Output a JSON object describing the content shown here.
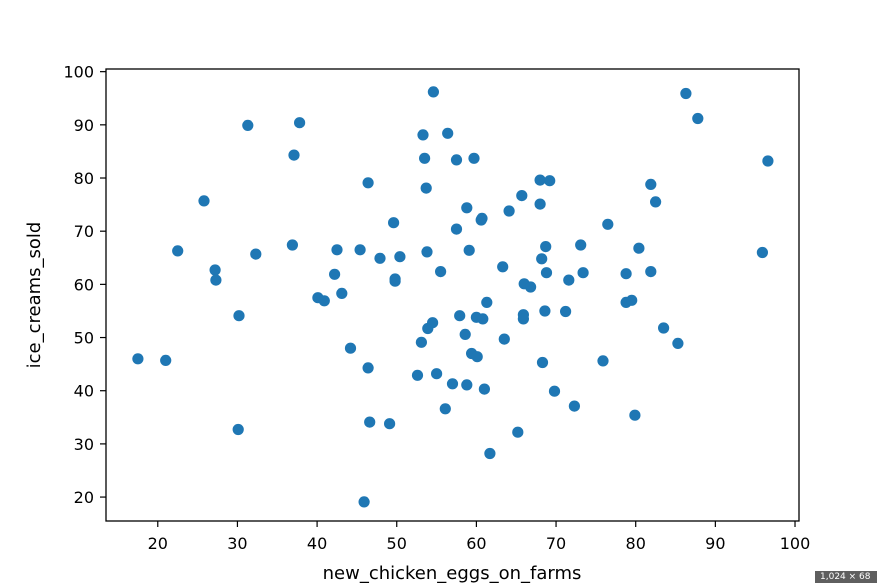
{
  "chart_data": {
    "type": "scatter",
    "title": "",
    "xlabel": "new_chicken_eggs_on_farms",
    "ylabel": "ice_creams_sold",
    "xlim": [
      13.5,
      100.5
    ],
    "ylim": [
      15.5,
      100.5
    ],
    "x_ticks": [
      20,
      30,
      40,
      50,
      60,
      70,
      80,
      90,
      100
    ],
    "y_ticks": [
      20,
      30,
      40,
      50,
      60,
      70,
      80,
      90,
      100
    ],
    "grid": false,
    "marker_color": "#1f77b4",
    "points": [
      [
        17.5,
        46
      ],
      [
        21,
        45.7
      ],
      [
        22.5,
        66.3
      ],
      [
        25.8,
        75.7
      ],
      [
        27.2,
        62.7
      ],
      [
        27.3,
        60.8
      ],
      [
        30.2,
        54.1
      ],
      [
        30.1,
        32.7
      ],
      [
        31.3,
        89.9
      ],
      [
        32.3,
        65.7
      ],
      [
        37.1,
        84.3
      ],
      [
        36.9,
        67.4
      ],
      [
        37.8,
        90.4
      ],
      [
        40.1,
        57.5
      ],
      [
        40.9,
        56.9
      ],
      [
        42.2,
        61.9
      ],
      [
        42.5,
        66.5
      ],
      [
        43.1,
        58.3
      ],
      [
        44.2,
        48
      ],
      [
        45.4,
        66.5
      ],
      [
        45.9,
        19.1
      ],
      [
        46.4,
        79.1
      ],
      [
        46.4,
        44.3
      ],
      [
        46.6,
        34.1
      ],
      [
        47.9,
        64.9
      ],
      [
        49.1,
        33.8
      ],
      [
        49.6,
        71.6
      ],
      [
        49.8,
        61
      ],
      [
        49.8,
        60.6
      ],
      [
        50.4,
        65.2
      ],
      [
        52.6,
        42.9
      ],
      [
        53.1,
        49.1
      ],
      [
        53.3,
        88.1
      ],
      [
        53.5,
        83.7
      ],
      [
        53.7,
        78.1
      ],
      [
        53.8,
        66.1
      ],
      [
        53.9,
        51.7
      ],
      [
        54.5,
        52.8
      ],
      [
        54.6,
        96.2
      ],
      [
        55.0,
        43.2
      ],
      [
        55.5,
        62.4
      ],
      [
        56.1,
        36.6
      ],
      [
        56.4,
        88.4
      ],
      [
        57.0,
        41.3
      ],
      [
        57.5,
        83.4
      ],
      [
        57.5,
        70.4
      ],
      [
        57.9,
        54.1
      ],
      [
        58.6,
        50.6
      ],
      [
        58.8,
        74.4
      ],
      [
        58.8,
        41.1
      ],
      [
        59.1,
        66.4
      ],
      [
        59.4,
        47
      ],
      [
        59.7,
        83.7
      ],
      [
        60.0,
        53.8
      ],
      [
        60.1,
        46.4
      ],
      [
        60.6,
        72.1
      ],
      [
        60.7,
        72.4
      ],
      [
        60.8,
        53.5
      ],
      [
        61.0,
        40.3
      ],
      [
        61.3,
        56.6
      ],
      [
        61.7,
        28.2
      ],
      [
        63.3,
        63.3
      ],
      [
        63.5,
        49.7
      ],
      [
        64.1,
        73.8
      ],
      [
        65.2,
        32.2
      ],
      [
        65.7,
        76.7
      ],
      [
        65.9,
        54.3
      ],
      [
        65.9,
        53.5
      ],
      [
        66.0,
        60.1
      ],
      [
        66.8,
        59.5
      ],
      [
        68.0,
        79.6
      ],
      [
        68.0,
        75.1
      ],
      [
        68.2,
        64.8
      ],
      [
        68.3,
        45.3
      ],
      [
        68.6,
        55
      ],
      [
        68.7,
        67.1
      ],
      [
        68.8,
        62.2
      ],
      [
        69.2,
        79.5
      ],
      [
        69.8,
        39.9
      ],
      [
        71.2,
        54.9
      ],
      [
        71.6,
        60.8
      ],
      [
        72.3,
        37.1
      ],
      [
        73.1,
        67.4
      ],
      [
        73.4,
        62.2
      ],
      [
        75.9,
        45.6
      ],
      [
        76.5,
        71.3
      ],
      [
        78.8,
        62
      ],
      [
        78.8,
        56.6
      ],
      [
        79.5,
        57
      ],
      [
        79.9,
        35.4
      ],
      [
        80.4,
        66.8
      ],
      [
        81.9,
        78.8
      ],
      [
        81.9,
        62.4
      ],
      [
        82.5,
        75.5
      ],
      [
        83.5,
        51.8
      ],
      [
        85.3,
        48.9
      ],
      [
        86.3,
        95.9
      ],
      [
        87.8,
        91.2
      ],
      [
        95.9,
        66
      ],
      [
        96.6,
        83.2
      ]
    ]
  },
  "overlay": {
    "size_badge": "1,024 × 68"
  }
}
